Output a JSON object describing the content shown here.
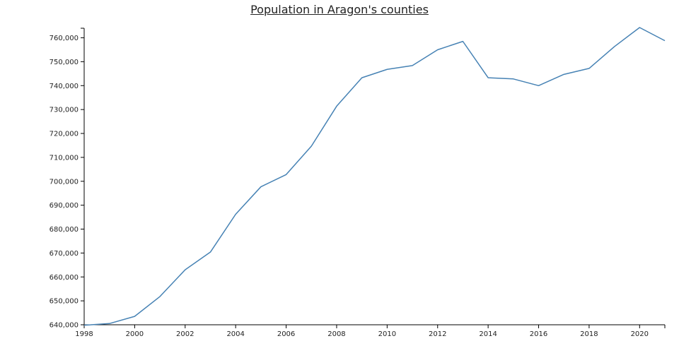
{
  "chart_data": {
    "type": "line",
    "title": "Population in Aragon's counties",
    "xlabel": "",
    "ylabel": "",
    "x": [
      1998,
      1999,
      2000,
      2001,
      2002,
      2003,
      2004,
      2005,
      2006,
      2007,
      2008,
      2009,
      2010,
      2011,
      2012,
      2013,
      2014,
      2015,
      2016,
      2017,
      2018,
      2019,
      2020,
      2021
    ],
    "series": [
      {
        "values": [
          639800,
          640500,
          643500,
          651800,
          663000,
          670400,
          686200,
          697700,
          702800,
          714700,
          731400,
          743300,
          746800,
          748400,
          755000,
          758500,
          743300,
          742800,
          740000,
          744700,
          747200,
          756300,
          764300,
          758800
        ],
        "color": "#4682b4"
      }
    ],
    "xlim": [
      1998,
      2021
    ],
    "ylim": [
      640000,
      764000
    ],
    "x_ticks": [
      "1998",
      "2000",
      "2002",
      "2004",
      "2006",
      "2008",
      "2010",
      "2012",
      "2014",
      "2016",
      "2018",
      "2020"
    ],
    "x_tick_values": [
      1998,
      2000,
      2002,
      2004,
      2006,
      2008,
      2010,
      2012,
      2014,
      2016,
      2018,
      2020
    ],
    "y_ticks": [
      "640,000",
      "650,000",
      "660,000",
      "670,000",
      "680,000",
      "690,000",
      "700,000",
      "710,000",
      "720,000",
      "730,000",
      "740,000",
      "750,000",
      "760,000"
    ],
    "y_tick_values": [
      640000,
      650000,
      660000,
      670000,
      680000,
      690000,
      700000,
      710000,
      720000,
      730000,
      740000,
      750000,
      760000
    ],
    "grid": false,
    "legend": "none",
    "axis_color": "#000000"
  }
}
